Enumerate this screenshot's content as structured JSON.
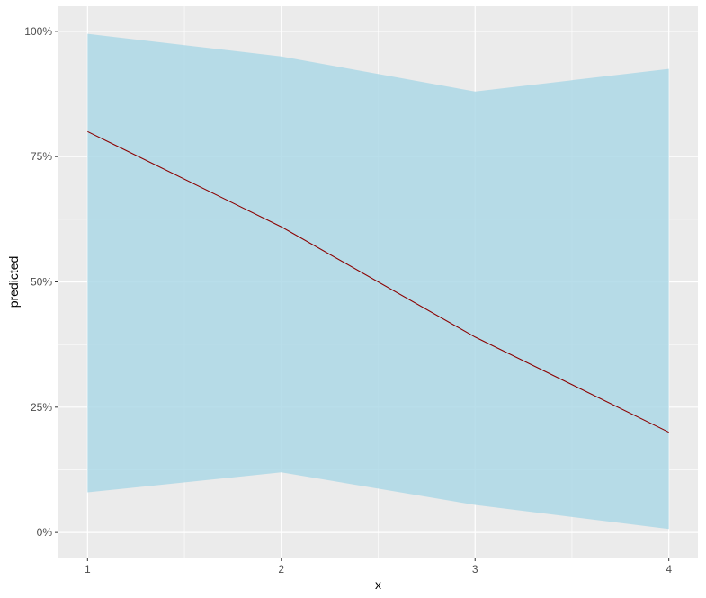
{
  "chart_data": {
    "type": "line",
    "xlabel": "x",
    "ylabel": "predicted",
    "x": [
      1,
      2,
      3,
      4
    ],
    "x_ticks": [
      "1",
      "2",
      "3",
      "4"
    ],
    "y_ticks": [
      "0%",
      "25%",
      "50%",
      "75%",
      "100%"
    ],
    "y_tick_values": [
      0,
      0.25,
      0.5,
      0.75,
      1.0
    ],
    "xlim": [
      0.85,
      4.15
    ],
    "ylim": [
      -0.05,
      1.05
    ],
    "grid": true,
    "series": [
      {
        "values": [
          0.8,
          0.61,
          0.39,
          0.2
        ],
        "lower": [
          0.08,
          0.12,
          0.055,
          0.007
        ],
        "upper": [
          0.995,
          0.95,
          0.88,
          0.925
        ],
        "line_color": "#8b0000",
        "ribbon_color": "#add8e6"
      }
    ],
    "panel_background": "#ebebeb",
    "grid_color": "#ffffff"
  }
}
